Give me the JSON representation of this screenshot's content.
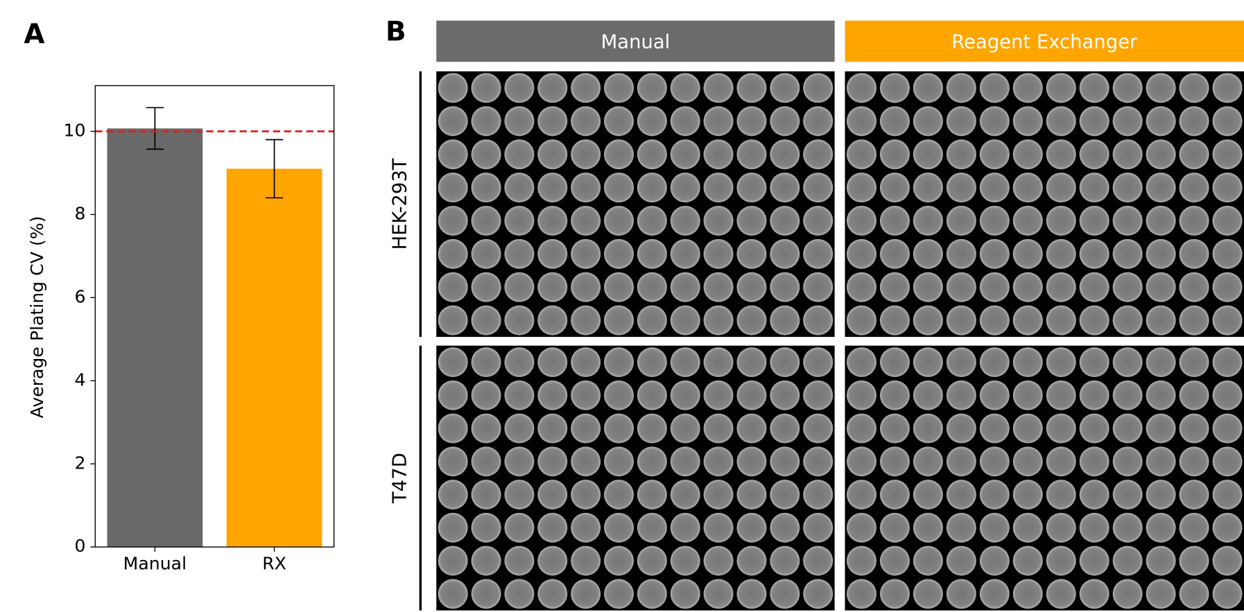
{
  "chart_data": {
    "type": "bar",
    "panel_label": "A",
    "ylabel": "Average Plating CV (%)",
    "categories": [
      "Manual",
      "RX"
    ],
    "values": [
      10.07,
      9.1
    ],
    "errors": [
      0.5,
      0.7
    ],
    "colors": [
      "#696969",
      "#ffa500"
    ],
    "reference_line": 10,
    "reference_color": "#e41a1c",
    "ylim": [
      0,
      11.1
    ],
    "yticks": [
      0,
      2,
      4,
      6,
      8,
      10
    ]
  },
  "panel_b": {
    "panel_label": "B",
    "columns": [
      "Manual",
      "Reagent Exchanger"
    ],
    "rows": [
      "HEK-293T",
      "T47D"
    ]
  }
}
